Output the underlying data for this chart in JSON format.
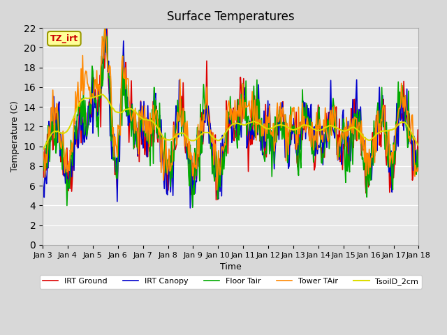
{
  "title": "Surface Temperatures",
  "xlabel": "Time",
  "ylabel": "Temperature (C)",
  "ylim": [
    0,
    22
  ],
  "yticks": [
    0,
    2,
    4,
    6,
    8,
    10,
    12,
    14,
    16,
    18,
    20,
    22
  ],
  "xtick_labels": [
    "Jan 3",
    "Jan 4",
    "Jan 5",
    "Jan 6",
    "Jan 7",
    "Jan 8",
    "Jan 9",
    "Jan 10",
    "Jan 11",
    "Jan 12",
    "Jan 13",
    "Jan 14",
    "Jan 15",
    "Jan 16",
    "Jan 17",
    "Jan 18"
  ],
  "annotation_text": "TZ_irt",
  "annotation_color": "#cc0000",
  "annotation_bg": "#ffff99",
  "annotation_border": "#999900",
  "bg_color": "#e8e8e8",
  "plot_bg": "#e8e8e8",
  "series": [
    {
      "label": "IRT Ground",
      "color": "#dd0000",
      "lw": 1.2
    },
    {
      "label": "IRT Canopy",
      "color": "#0000cc",
      "lw": 1.2
    },
    {
      "label": "Floor Tair",
      "color": "#00aa00",
      "lw": 1.2
    },
    {
      "label": "Tower TAir",
      "color": "#ff8800",
      "lw": 1.2
    },
    {
      "label": "TsoilD_2cm",
      "color": "#dddd00",
      "lw": 1.5
    }
  ],
  "n_points": 480
}
